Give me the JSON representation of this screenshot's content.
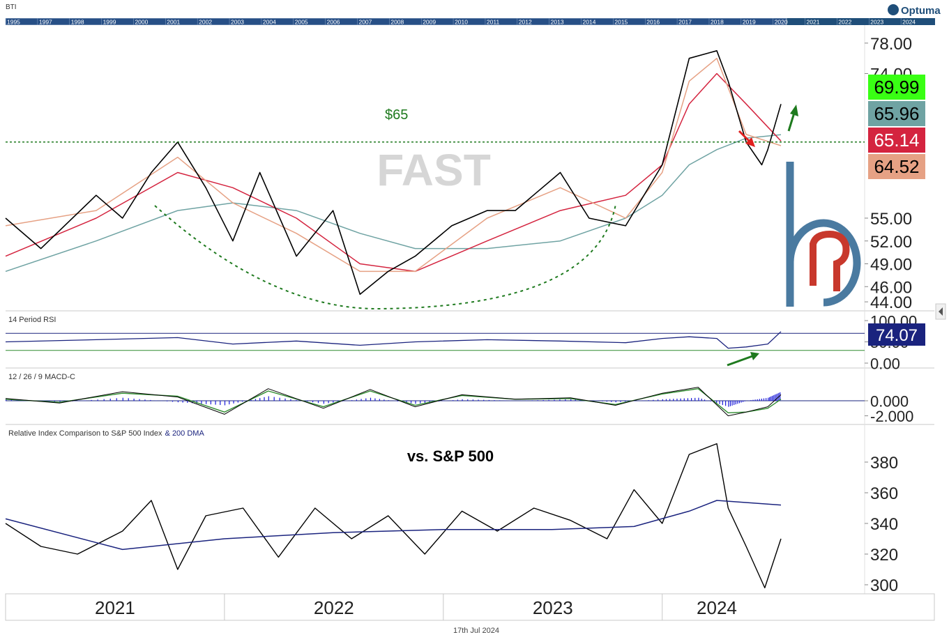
{
  "header": {
    "symbol": "BTI",
    "brand": "Optuma",
    "footer_date": "17th Jul 2024",
    "timeline_years": [
      "1995",
      "1997",
      "1998",
      "1999",
      "2000",
      "2001",
      "2002",
      "2003",
      "2004",
      "2005",
      "2006",
      "2007",
      "2008",
      "2009",
      "2010",
      "2011",
      "2012",
      "2013",
      "2014",
      "2015",
      "2016",
      "2017",
      "2018",
      "2019",
      "2020",
      "2021",
      "2022",
      "2023",
      "2024"
    ]
  },
  "colors": {
    "price": "#000000",
    "ma_fast": "#e6a184",
    "ma_mid": "#d4243f",
    "ma_slow": "#6fa3a3",
    "support_line": "#1e7a1e",
    "rsi_line": "#1a237e",
    "macd_hist": "#1a1ad8",
    "macd_signal": "#2e8b2e",
    "relative_line": "#000000",
    "relative_dma": "#1a237e",
    "arrow_up": "#1e7a1e",
    "arrow_down": "#e0201e",
    "tag_close": "#39ff14",
    "tag_ma_slow": "#6fa3a3",
    "tag_ma_mid": "#d4243f",
    "tag_ma_fast": "#e6a184",
    "tag_rsi": "#1a237e",
    "timeline_bg": "#1f4e79",
    "logo": "#4a7aa0",
    "logo_red": "#c8382c"
  },
  "annotations": {
    "support_label": "$65",
    "watermark": "FAST",
    "relative_label": "vs. S&P 500"
  },
  "chart_data": [
    {
      "type": "line",
      "panel": "price",
      "x_axis_labels": [
        "2021",
        "2022",
        "2023",
        "2024"
      ],
      "x_range": [
        "2021-01-01",
        "2024-07-17"
      ],
      "ylim": [
        43,
        80
      ],
      "y_ticks": [
        "78.00",
        "74.00",
        "55.00",
        "52.00",
        "49.00",
        "46.00",
        "44.00"
      ],
      "support_level": 65,
      "price_tags": {
        "close": "69.99",
        "ma_slow": "65.96",
        "ma_mid": "65.14",
        "ma_fast": "64.52"
      },
      "series": [
        {
          "name": "price",
          "x": [
            "2021-01-01",
            "2021-03-01",
            "2021-06-01",
            "2021-07-15",
            "2021-09-01",
            "2021-10-15",
            "2021-12-01",
            "2022-01-15",
            "2022-03-01",
            "2022-05-01",
            "2022-07-01",
            "2022-08-15",
            "2022-10-01",
            "2022-11-15",
            "2023-01-15",
            "2023-03-15",
            "2023-05-01",
            "2023-07-15",
            "2023-09-01",
            "2023-11-01",
            "2024-01-01",
            "2024-02-15",
            "2024-04-01",
            "2024-04-20",
            "2024-05-20",
            "2024-06-15",
            "2024-06-25",
            "2024-07-17"
          ],
          "y": [
            55,
            51,
            58,
            55,
            61,
            65,
            59,
            52,
            61,
            50,
            56,
            45,
            48,
            50,
            54,
            56,
            56,
            61,
            55,
            54,
            62,
            76,
            77,
            73,
            65,
            62,
            64,
            69.99
          ]
        },
        {
          "name": "ma_fast",
          "x": [
            "2021-01-01",
            "2021-06-01",
            "2021-10-15",
            "2022-01-15",
            "2022-05-01",
            "2022-08-15",
            "2022-11-15",
            "2023-03-15",
            "2023-07-15",
            "2023-11-01",
            "2024-01-01",
            "2024-02-15",
            "2024-04-01",
            "2024-05-20",
            "2024-07-17"
          ],
          "y": [
            54,
            56,
            63,
            57,
            53,
            48,
            48,
            55,
            59,
            55,
            61,
            73,
            76,
            66,
            64.52
          ]
        },
        {
          "name": "ma_mid",
          "x": [
            "2021-01-01",
            "2021-06-01",
            "2021-10-15",
            "2022-01-15",
            "2022-05-01",
            "2022-08-15",
            "2022-11-15",
            "2023-03-15",
            "2023-07-15",
            "2023-11-01",
            "2024-01-01",
            "2024-02-15",
            "2024-04-01",
            "2024-05-20",
            "2024-07-17"
          ],
          "y": [
            50,
            55,
            61,
            59,
            55,
            49,
            48,
            52,
            56,
            58,
            62,
            70,
            74,
            70,
            65.14
          ]
        },
        {
          "name": "ma_slow",
          "x": [
            "2021-01-01",
            "2021-06-01",
            "2021-10-15",
            "2022-01-15",
            "2022-05-01",
            "2022-08-15",
            "2022-11-15",
            "2023-03-15",
            "2023-07-15",
            "2023-11-01",
            "2024-01-01",
            "2024-02-15",
            "2024-04-01",
            "2024-05-20",
            "2024-07-17"
          ],
          "y": [
            48,
            52,
            56,
            57,
            56,
            53,
            51,
            51,
            52,
            55,
            58,
            62,
            64,
            65.5,
            65.96
          ]
        }
      ]
    },
    {
      "type": "line",
      "panel": "rsi",
      "title": "14 Period RSI",
      "ylim": [
        0,
        100
      ],
      "y_ticks": [
        "100.00",
        "50.00",
        "0.00"
      ],
      "reference_lines": [
        70,
        30
      ],
      "last_value": "74.07",
      "series": [
        {
          "name": "rsi",
          "x": [
            "2021-01-01",
            "2021-06-01",
            "2021-10-15",
            "2022-01-15",
            "2022-05-01",
            "2022-08-15",
            "2022-11-15",
            "2023-03-15",
            "2023-07-15",
            "2023-11-01",
            "2024-01-01",
            "2024-02-15",
            "2024-04-01",
            "2024-04-20",
            "2024-05-20",
            "2024-06-25",
            "2024-07-17"
          ],
          "y": [
            50,
            55,
            60,
            45,
            52,
            42,
            50,
            55,
            52,
            48,
            58,
            62,
            58,
            35,
            38,
            45,
            74.07
          ]
        }
      ]
    },
    {
      "type": "line",
      "panel": "macd",
      "title": "12 / 26 / 9 MACD-C",
      "ylim": [
        -2.5,
        2.5
      ],
      "y_ticks": [
        "0.000",
        "-2.000"
      ],
      "series": [
        {
          "name": "macd",
          "x": [
            "2021-01-01",
            "2021-04-01",
            "2021-07-15",
            "2021-10-15",
            "2022-01-01",
            "2022-03-15",
            "2022-06-15",
            "2022-09-01",
            "2022-11-15",
            "2023-02-01",
            "2023-05-01",
            "2023-08-01",
            "2023-10-15",
            "2024-01-01",
            "2024-03-01",
            "2024-04-20",
            "2024-05-20",
            "2024-06-25",
            "2024-07-17"
          ],
          "y": [
            0.3,
            -0.3,
            1.2,
            0.5,
            -1.8,
            1.6,
            -1.0,
            1.5,
            -0.8,
            0.8,
            0.2,
            0.4,
            -0.6,
            1.0,
            1.8,
            -2.0,
            -1.5,
            -0.8,
            0.8
          ]
        },
        {
          "name": "signal",
          "x": [
            "2021-01-01",
            "2021-04-01",
            "2021-07-15",
            "2021-10-15",
            "2022-01-01",
            "2022-03-15",
            "2022-06-15",
            "2022-09-01",
            "2022-11-15",
            "2023-02-01",
            "2023-05-01",
            "2023-08-01",
            "2023-10-15",
            "2024-01-01",
            "2024-03-01",
            "2024-04-20",
            "2024-05-20",
            "2024-06-25",
            "2024-07-17"
          ],
          "y": [
            0.2,
            -0.2,
            1.0,
            0.6,
            -1.5,
            1.3,
            -0.8,
            1.3,
            -0.6,
            0.7,
            0.2,
            0.3,
            -0.5,
            0.9,
            1.6,
            -1.6,
            -1.5,
            -1.0,
            0.2
          ]
        }
      ]
    },
    {
      "type": "line",
      "panel": "relative",
      "title": "Relative Index Comparison to S&P 500 Index",
      "title_suffix": "& 200 DMA",
      "ylim": [
        295,
        395
      ],
      "y_ticks": [
        "380",
        "360",
        "340",
        "320",
        "300"
      ],
      "series": [
        {
          "name": "relative",
          "x": [
            "2021-01-01",
            "2021-03-01",
            "2021-05-01",
            "2021-07-15",
            "2021-09-01",
            "2021-10-15",
            "2021-12-01",
            "2022-02-01",
            "2022-04-01",
            "2022-06-01",
            "2022-08-01",
            "2022-10-01",
            "2022-12-01",
            "2023-02-01",
            "2023-04-01",
            "2023-06-01",
            "2023-08-01",
            "2023-10-01",
            "2023-11-15",
            "2024-01-01",
            "2024-02-15",
            "2024-04-01",
            "2024-04-20",
            "2024-05-20",
            "2024-06-20",
            "2024-07-17"
          ],
          "y": [
            340,
            325,
            320,
            335,
            355,
            310,
            345,
            350,
            318,
            350,
            330,
            345,
            320,
            348,
            335,
            350,
            342,
            330,
            362,
            340,
            385,
            392,
            350,
            325,
            298,
            330
          ]
        },
        {
          "name": "200_dma",
          "x": [
            "2021-01-01",
            "2021-07-15",
            "2022-01-01",
            "2022-07-01",
            "2023-01-01",
            "2023-07-01",
            "2023-11-15",
            "2024-02-15",
            "2024-04-01",
            "2024-07-17"
          ],
          "y": [
            343,
            323,
            330,
            334,
            336,
            336,
            338,
            348,
            355,
            352
          ]
        }
      ]
    }
  ]
}
